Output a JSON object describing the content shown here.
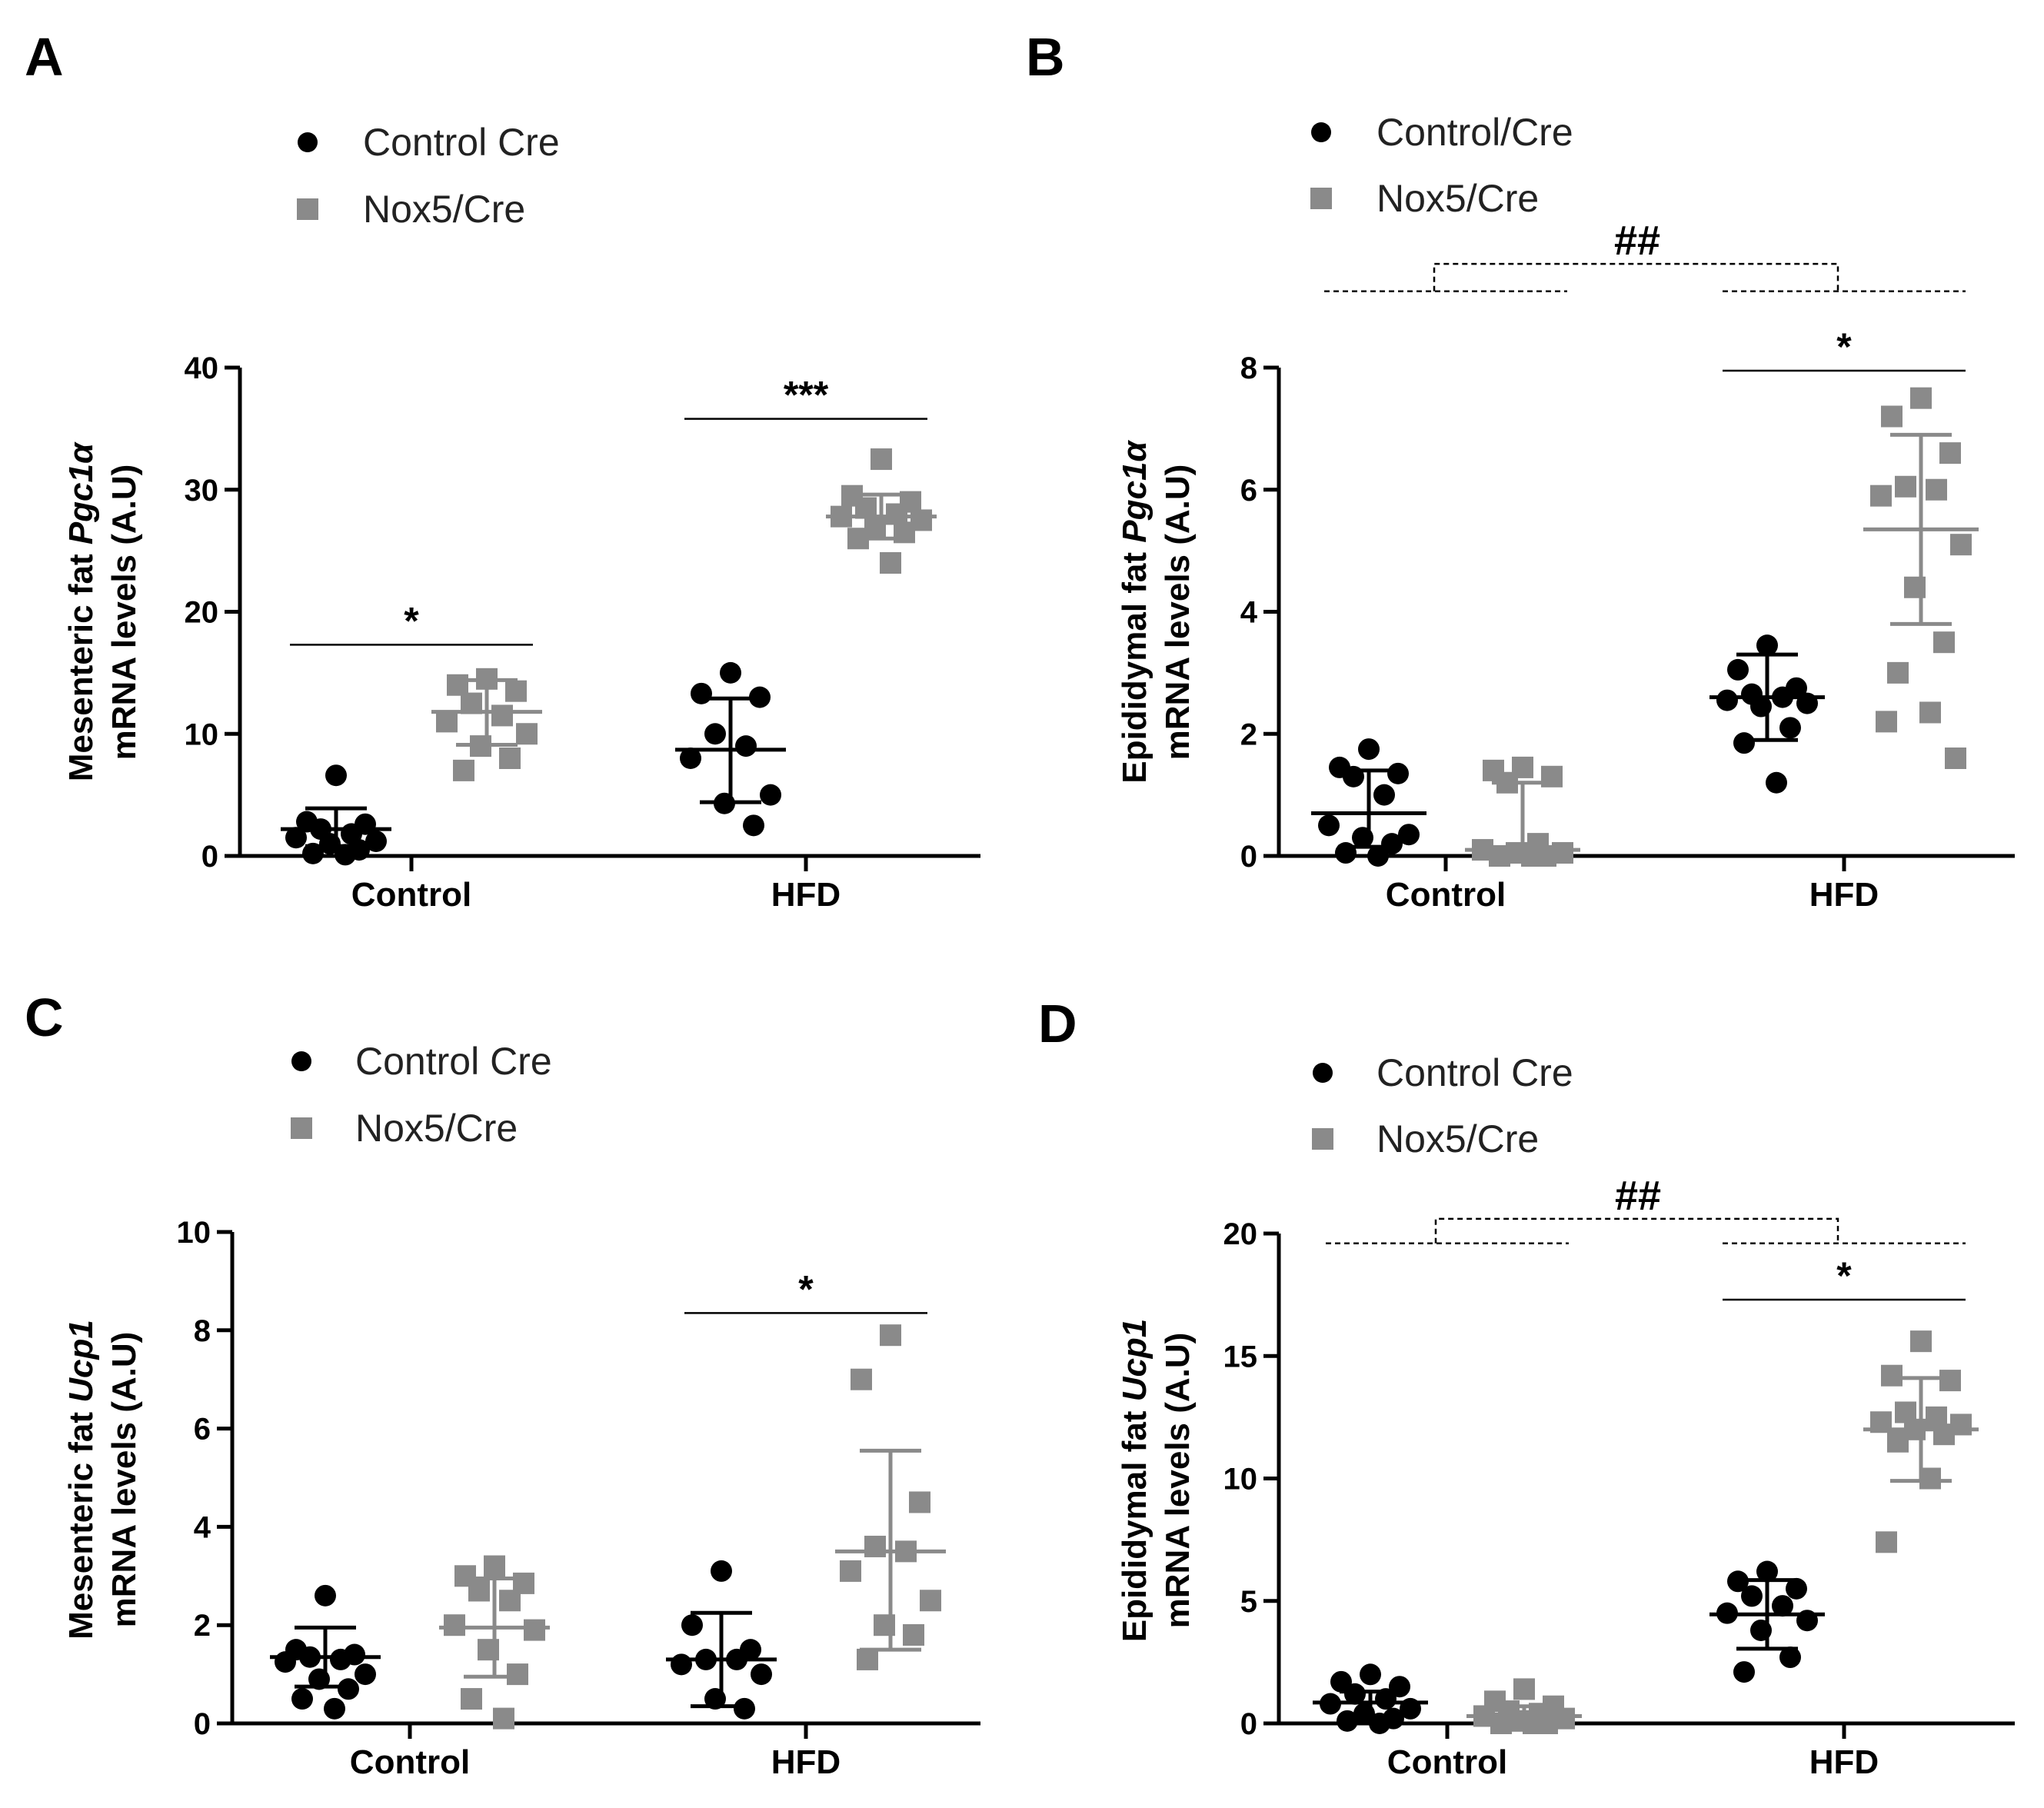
{
  "colors": {
    "control": "#000000",
    "nox5": "#8a8a8a",
    "axis": "#000000"
  },
  "chart_data": [
    {
      "type": "scatter",
      "panel": "A",
      "legend": [
        "Control Cre",
        "Nox5/Cre"
      ],
      "ylabel": {
        "prefix": "Mesenteric fat ",
        "gene": "Pgc1α",
        "line2": "mRNA levels (A.U)"
      },
      "categories": [
        "Control",
        "HFD"
      ],
      "ylim": [
        0,
        40
      ],
      "yticks": [
        0,
        10,
        20,
        30,
        40
      ],
      "series": [
        {
          "name": "Control Cre",
          "marker": "circle",
          "groups": [
            {
              "category": "Control",
              "mean": 2.2,
              "sd_low": 0.8,
              "sd_high": 3.9,
              "points": [
                6.6,
                2.8,
                2.6,
                2.2,
                1.8,
                1.5,
                1.2,
                1.0,
                0.5,
                0.2,
                0.1
              ]
            },
            {
              "category": "HFD",
              "mean": 8.7,
              "sd_low": 4.4,
              "sd_high": 12.9,
              "points": [
                15.0,
                13.3,
                13.0,
                10.0,
                9.0,
                8.0,
                5.0,
                4.3,
                2.5
              ]
            }
          ]
        },
        {
          "name": "Nox5/Cre",
          "marker": "square",
          "groups": [
            {
              "category": "Control",
              "mean": 11.8,
              "sd_low": 9.1,
              "sd_high": 14.4,
              "points": [
                14.5,
                14.0,
                13.5,
                12.5,
                11.5,
                11.0,
                10.0,
                9.0,
                8.0,
                7.0
              ]
            },
            {
              "category": "HFD",
              "mean": 27.8,
              "sd_low": 26.0,
              "sd_high": 29.6,
              "points": [
                32.5,
                29.5,
                29.0,
                28.5,
                28.0,
                27.8,
                27.5,
                27.0,
                26.5,
                26.0,
                24.0
              ]
            }
          ]
        }
      ],
      "significance": [
        {
          "label": "*",
          "category": "Control",
          "y": 17.3
        },
        {
          "label": "***",
          "category": "HFD",
          "y": 35.8
        }
      ],
      "group_significance": null
    },
    {
      "type": "scatter",
      "panel": "B",
      "legend": [
        "Control/Cre",
        "Nox5/Cre"
      ],
      "ylabel": {
        "prefix": "Epididymal fat ",
        "gene": "Pgc1α",
        "line2": "mRNA levels (A.U)"
      },
      "categories": [
        "Control",
        "HFD"
      ],
      "ylim": [
        0,
        8
      ],
      "yticks": [
        0,
        2,
        4,
        6,
        8
      ],
      "series": [
        {
          "name": "Control/Cre",
          "marker": "circle",
          "groups": [
            {
              "category": "Control",
              "mean": 0.7,
              "sd_low": 0.15,
              "sd_high": 1.4,
              "points": [
                1.75,
                1.45,
                1.35,
                1.3,
                1.0,
                0.5,
                0.35,
                0.3,
                0.2,
                0.05,
                0.0
              ]
            },
            {
              "category": "HFD",
              "mean": 2.6,
              "sd_low": 1.9,
              "sd_high": 3.3,
              "points": [
                3.45,
                3.05,
                2.75,
                2.65,
                2.6,
                2.55,
                2.5,
                2.45,
                2.1,
                1.85,
                1.2
              ]
            }
          ]
        },
        {
          "name": "Nox5/Cre",
          "marker": "square",
          "groups": [
            {
              "category": "Control",
              "mean": 0.1,
              "sd_low": 0.0,
              "sd_high": 1.2,
              "points": [
                1.45,
                1.4,
                1.3,
                1.2,
                0.2,
                0.1,
                0.05,
                0.05,
                0.0,
                0.0,
                0.0
              ]
            },
            {
              "category": "HFD",
              "mean": 5.35,
              "sd_low": 3.8,
              "sd_high": 6.9,
              "points": [
                7.5,
                7.2,
                6.6,
                6.05,
                6.0,
                5.9,
                5.1,
                4.4,
                3.5,
                3.0,
                2.35,
                2.2,
                1.6
              ]
            }
          ]
        }
      ],
      "significance": [
        {
          "label": "*",
          "category": "HFD",
          "y": 7.95
        }
      ],
      "group_significance": {
        "label": "##",
        "y_bracket": 9.25,
        "y_top": 9.7
      }
    },
    {
      "type": "scatter",
      "panel": "C",
      "legend": [
        "Control Cre",
        "Nox5/Cre"
      ],
      "ylabel": {
        "prefix": "Mesenteric fat ",
        "gene": "Ucp1",
        "line2": "mRNA levels (A.U)"
      },
      "categories": [
        "Control",
        "HFD"
      ],
      "ylim": [
        0,
        10
      ],
      "yticks": [
        0,
        2,
        4,
        6,
        8,
        10
      ],
      "series": [
        {
          "name": "Control Cre",
          "marker": "circle",
          "groups": [
            {
              "category": "Control",
              "mean": 1.35,
              "sd_low": 0.75,
              "sd_high": 1.95,
              "points": [
                2.6,
                1.5,
                1.4,
                1.35,
                1.3,
                1.25,
                1.0,
                0.9,
                0.7,
                0.5,
                0.3
              ]
            },
            {
              "category": "HFD",
              "mean": 1.3,
              "sd_low": 0.35,
              "sd_high": 2.25,
              "points": [
                3.1,
                2.0,
                1.5,
                1.3,
                1.3,
                1.2,
                1.0,
                0.5,
                0.3
              ]
            }
          ]
        },
        {
          "name": "Nox5/Cre",
          "marker": "square",
          "groups": [
            {
              "category": "Control",
              "mean": 1.95,
              "sd_low": 0.95,
              "sd_high": 2.95,
              "points": [
                3.2,
                3.0,
                2.85,
                2.7,
                2.5,
                2.0,
                1.9,
                1.5,
                1.0,
                0.5,
                0.1
              ]
            },
            {
              "category": "HFD",
              "mean": 3.5,
              "sd_low": 1.5,
              "sd_high": 5.55,
              "points": [
                7.9,
                7.0,
                4.5,
                3.6,
                3.5,
                3.1,
                2.5,
                2.0,
                1.8,
                1.3
              ]
            }
          ]
        }
      ],
      "significance": [
        {
          "label": "*",
          "category": "HFD",
          "y": 8.35
        }
      ],
      "group_significance": null
    },
    {
      "type": "scatter",
      "panel": "D",
      "legend": [
        "Control  Cre",
        "Nox5/Cre"
      ],
      "ylabel": {
        "prefix": "Epididymal fat ",
        "gene": "Ucp1",
        "line2": "mRNA levels (A.U)"
      },
      "categories": [
        "Control",
        "HFD"
      ],
      "ylim": [
        0,
        20
      ],
      "yticks": [
        0,
        5,
        10,
        15,
        20
      ],
      "series": [
        {
          "name": "Control  Cre",
          "marker": "circle",
          "groups": [
            {
              "category": "Control",
              "mean": 0.85,
              "sd_low": 0.2,
              "sd_high": 1.3,
              "points": [
                2.0,
                1.7,
                1.5,
                1.2,
                1.0,
                0.8,
                0.6,
                0.4,
                0.2,
                0.1,
                0.0
              ]
            },
            {
              "category": "HFD",
              "mean": 4.45,
              "sd_low": 3.05,
              "sd_high": 5.85,
              "points": [
                6.2,
                5.8,
                5.5,
                5.2,
                4.8,
                4.5,
                4.2,
                3.8,
                2.7,
                2.1
              ]
            }
          ]
        },
        {
          "name": "Nox5/Cre",
          "marker": "square",
          "groups": [
            {
              "category": "Control",
              "mean": 0.3,
              "sd_low": 0.0,
              "sd_high": 0.7,
              "points": [
                1.4,
                0.9,
                0.7,
                0.5,
                0.4,
                0.3,
                0.2,
                0.1,
                0.0,
                0.0,
                0.0
              ]
            },
            {
              "category": "HFD",
              "mean": 12.0,
              "sd_low": 9.9,
              "sd_high": 14.1,
              "points": [
                15.6,
                14.2,
                14.0,
                12.7,
                12.5,
                12.3,
                12.2,
                12.0,
                11.8,
                11.5,
                10.0,
                7.4
              ]
            }
          ]
        }
      ],
      "significance": [
        {
          "label": "*",
          "category": "HFD",
          "y": 17.3
        }
      ],
      "group_significance": {
        "label": "##",
        "y_bracket": 19.6,
        "y_top": 20.6
      }
    }
  ]
}
